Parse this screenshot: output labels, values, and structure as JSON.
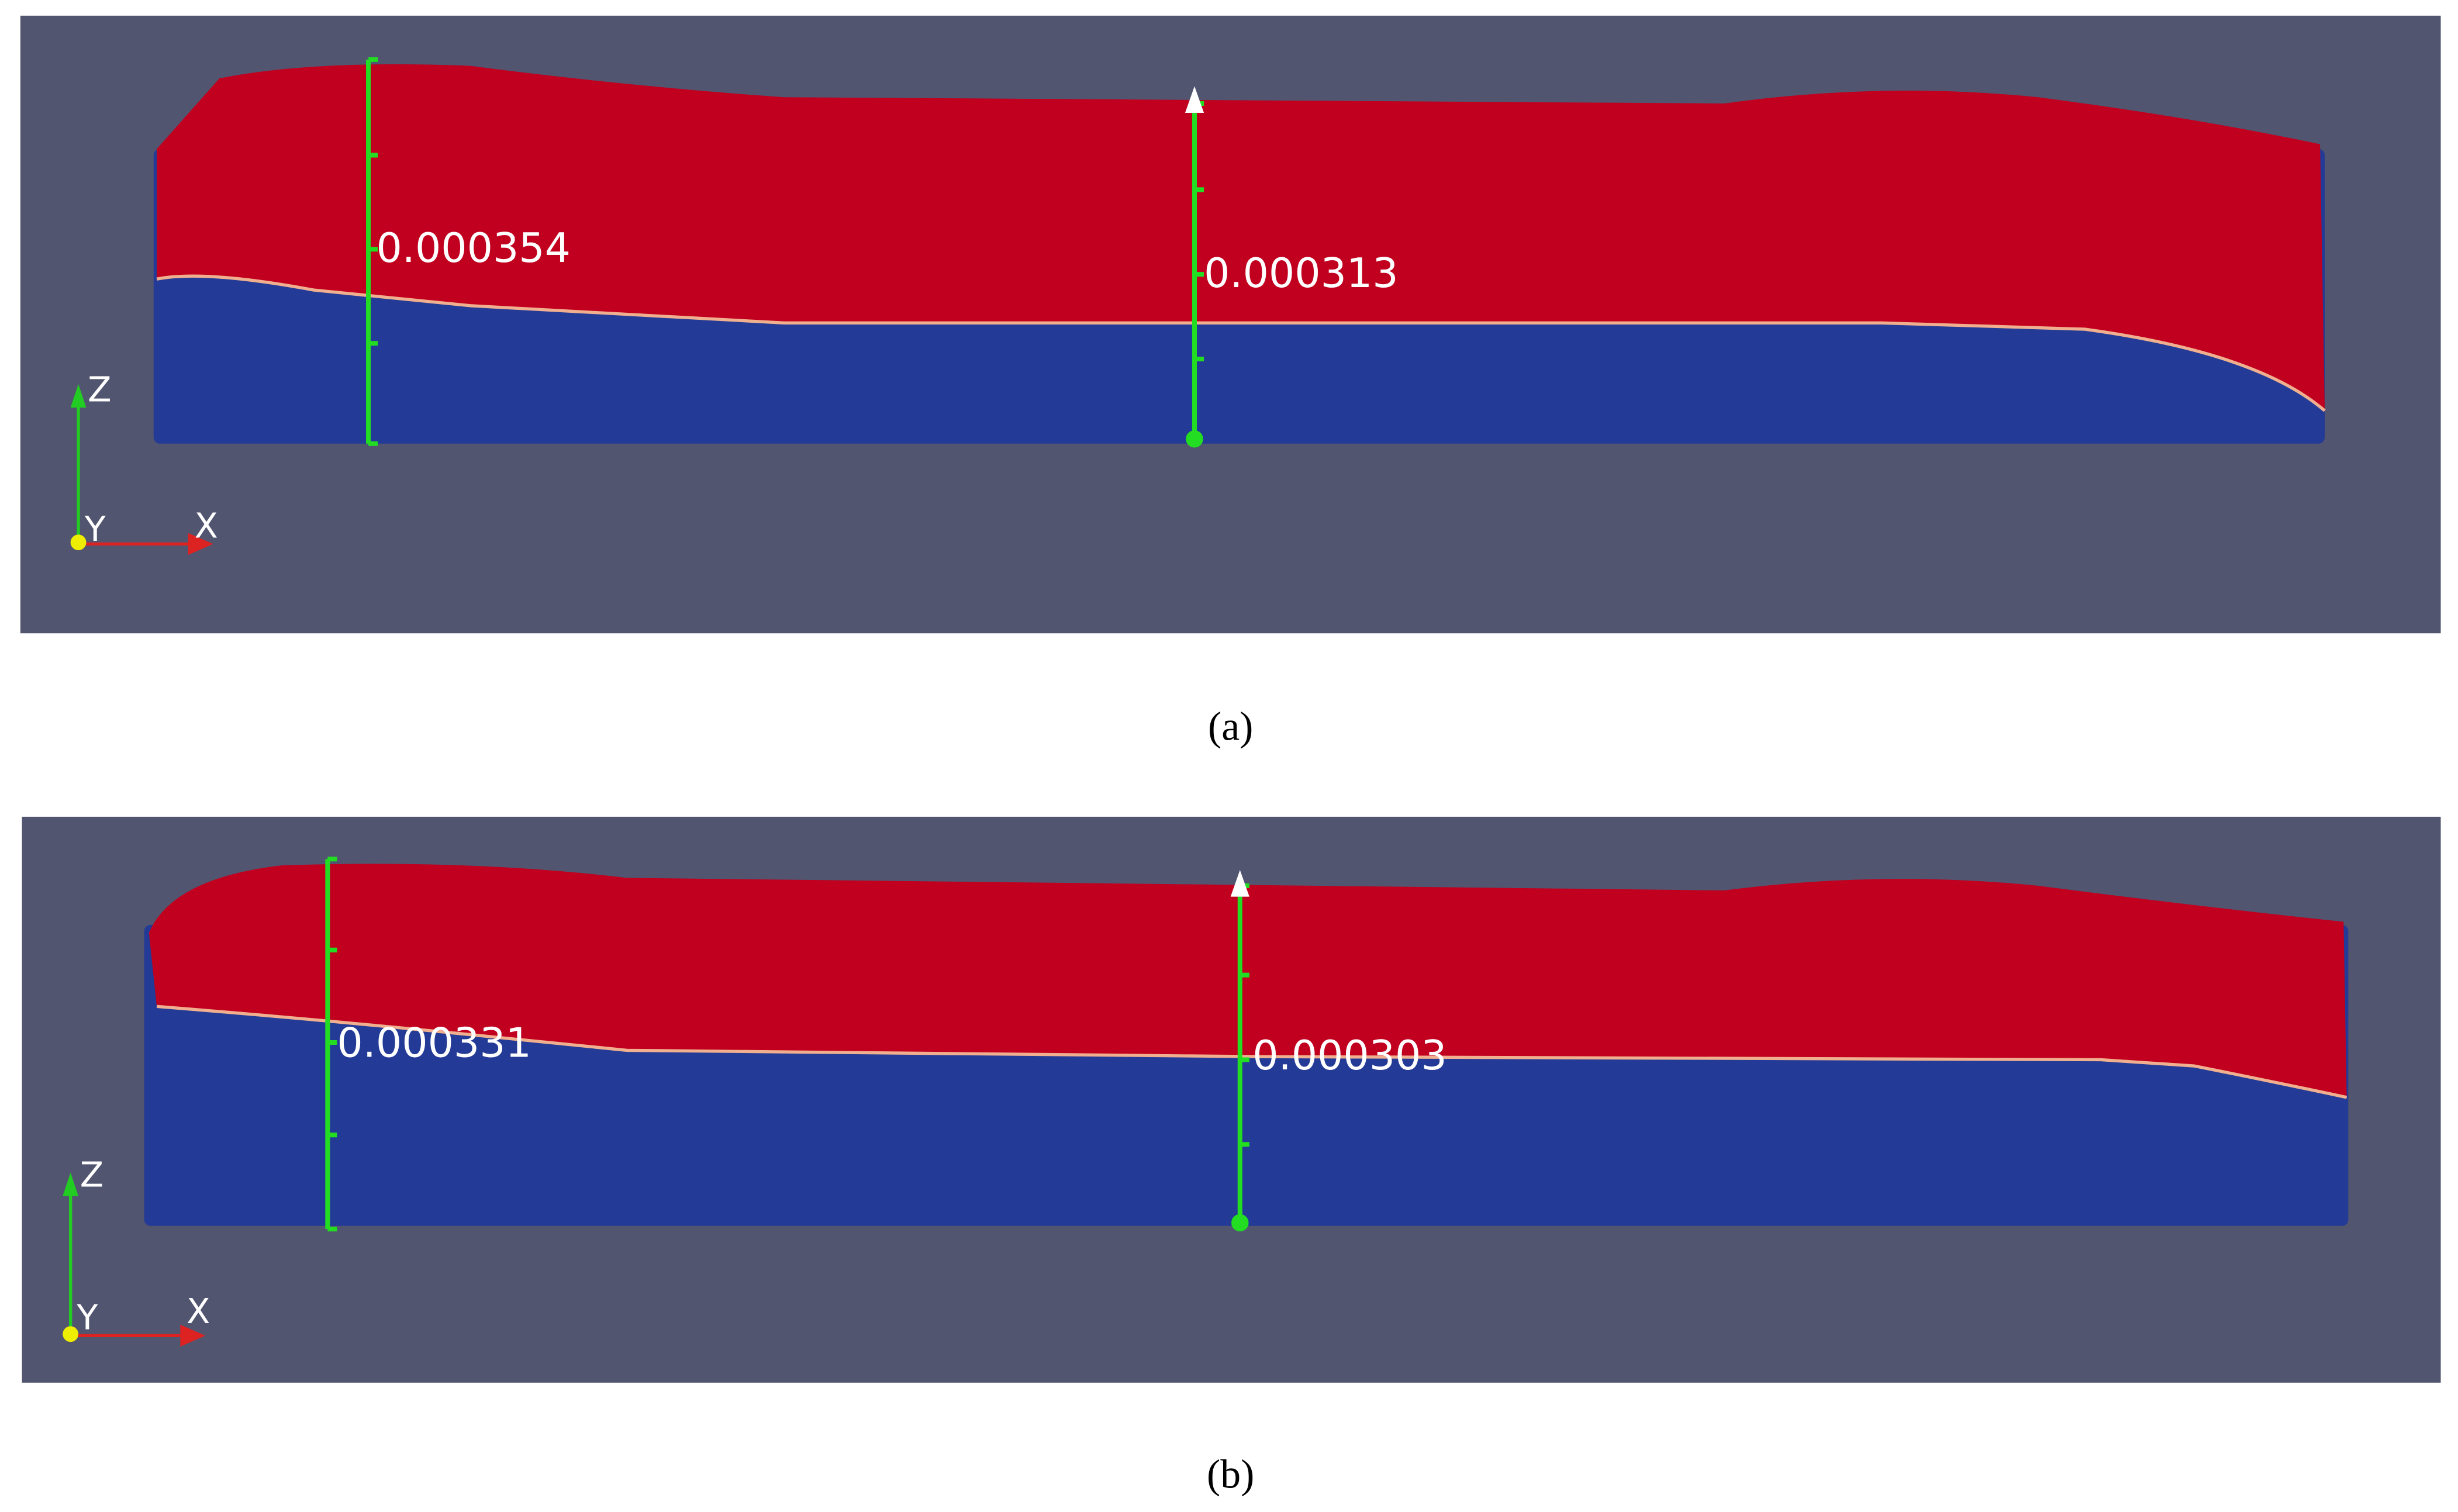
{
  "panels": [
    {
      "caption": "(a)",
      "measurements": [
        "0.000354",
        "0.000313"
      ],
      "axes": {
        "z": "Z",
        "y": "Y",
        "x": "X"
      }
    },
    {
      "caption": "(b)",
      "measurements": [
        "0.000331",
        "0.000303"
      ],
      "axes": {
        "z": "Z",
        "y": "Y",
        "x": "X"
      }
    }
  ]
}
